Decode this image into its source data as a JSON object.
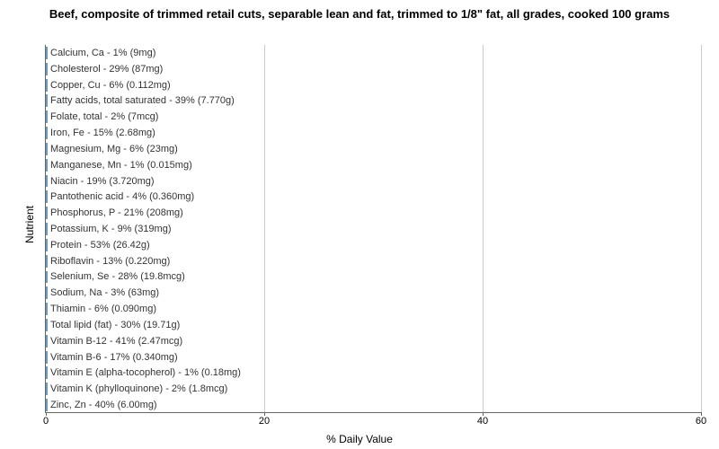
{
  "chart": {
    "type": "bar-horizontal",
    "title": "Beef, composite of trimmed retail cuts, separable lean and fat, trimmed to 1/8\" fat, all grades, cooked 100 grams",
    "x_axis_label": "% Daily Value",
    "y_axis_label": "Nutrient",
    "xlim_max": 60,
    "x_ticks": [
      0,
      20,
      40,
      60
    ],
    "bar_fill_color": "#b8d4f0",
    "bar_border_color": "#6699cc",
    "grid_color": "#cccccc",
    "background_color": "#ffffff",
    "title_fontsize": 13,
    "label_fontsize": 12,
    "tick_fontsize": 11,
    "bars": [
      {
        "label": "Calcium, Ca - 1% (9mg)",
        "value": 1
      },
      {
        "label": "Cholesterol - 29% (87mg)",
        "value": 29
      },
      {
        "label": "Copper, Cu - 6% (0.112mg)",
        "value": 6
      },
      {
        "label": "Fatty acids, total saturated - 39% (7.770g)",
        "value": 39
      },
      {
        "label": "Folate, total - 2% (7mcg)",
        "value": 2
      },
      {
        "label": "Iron, Fe - 15% (2.68mg)",
        "value": 15
      },
      {
        "label": "Magnesium, Mg - 6% (23mg)",
        "value": 6
      },
      {
        "label": "Manganese, Mn - 1% (0.015mg)",
        "value": 1
      },
      {
        "label": "Niacin - 19% (3.720mg)",
        "value": 19
      },
      {
        "label": "Pantothenic acid - 4% (0.360mg)",
        "value": 4
      },
      {
        "label": "Phosphorus, P - 21% (208mg)",
        "value": 21
      },
      {
        "label": "Potassium, K - 9% (319mg)",
        "value": 9
      },
      {
        "label": "Protein - 53% (26.42g)",
        "value": 53
      },
      {
        "label": "Riboflavin - 13% (0.220mg)",
        "value": 13
      },
      {
        "label": "Selenium, Se - 28% (19.8mcg)",
        "value": 28
      },
      {
        "label": "Sodium, Na - 3% (63mg)",
        "value": 3
      },
      {
        "label": "Thiamin - 6% (0.090mg)",
        "value": 6
      },
      {
        "label": "Total lipid (fat) - 30% (19.71g)",
        "value": 30
      },
      {
        "label": "Vitamin B-12 - 41% (2.47mcg)",
        "value": 41
      },
      {
        "label": "Vitamin B-6 - 17% (0.340mg)",
        "value": 17
      },
      {
        "label": "Vitamin E (alpha-tocopherol) - 1% (0.18mg)",
        "value": 1
      },
      {
        "label": "Vitamin K (phylloquinone) - 2% (1.8mcg)",
        "value": 2
      },
      {
        "label": "Zinc, Zn - 40% (6.00mg)",
        "value": 40
      }
    ]
  }
}
